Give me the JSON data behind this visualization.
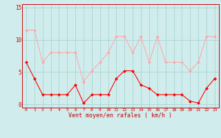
{
  "x": [
    0,
    1,
    2,
    3,
    4,
    5,
    6,
    7,
    8,
    9,
    10,
    11,
    12,
    13,
    14,
    15,
    16,
    17,
    18,
    19,
    20,
    21,
    22,
    23
  ],
  "wind_avg": [
    6.5,
    4.0,
    1.5,
    1.5,
    1.5,
    1.5,
    3.0,
    0.2,
    1.5,
    1.5,
    1.5,
    4.0,
    5.2,
    5.2,
    3.0,
    2.5,
    1.5,
    1.5,
    1.5,
    1.5,
    0.5,
    0.2,
    2.5,
    4.0
  ],
  "wind_gust": [
    11.5,
    11.5,
    6.5,
    8.0,
    8.0,
    8.0,
    8.0,
    3.5,
    5.2,
    6.5,
    8.0,
    10.5,
    10.5,
    8.0,
    10.5,
    6.5,
    10.5,
    6.5,
    6.5,
    6.5,
    5.2,
    6.5,
    10.5,
    10.5
  ],
  "avg_color": "#ff0000",
  "gust_color": "#ffaaaa",
  "bg_color": "#d0ecec",
  "grid_color": "#aad4d4",
  "xlabel": "Vent moyen/en rafales ( km/h )",
  "ylabel_ticks": [
    0,
    5,
    10,
    15
  ],
  "ylim": [
    -0.5,
    15.5
  ],
  "xlim": [
    -0.5,
    23.5
  ],
  "tick_color": "#cc0000",
  "xlabel_color": "#cc0000",
  "xlabel_fontsize": 6.0,
  "ytick_fontsize": 5.5,
  "xtick_fontsize": 4.5
}
